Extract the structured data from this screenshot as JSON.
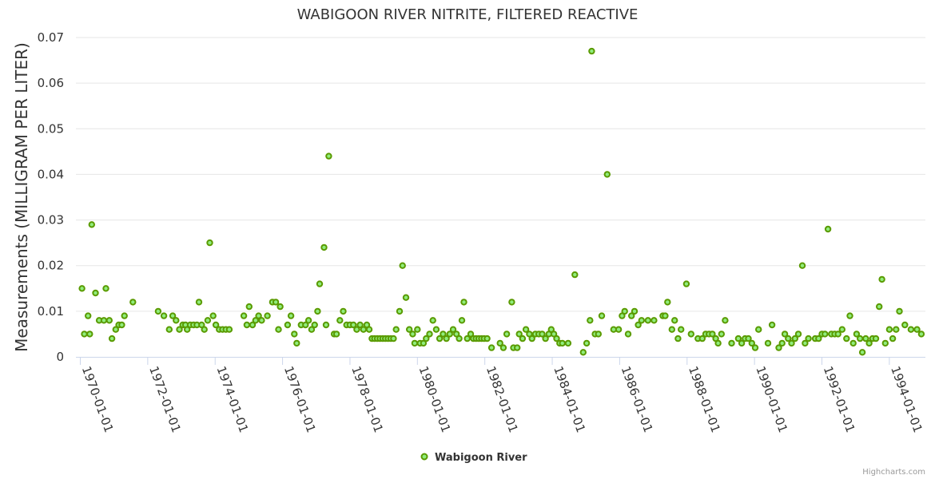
{
  "chart_data": {
    "type": "scatter",
    "title": "WABIGOON RIVER NITRITE, FILTERED REACTIVE",
    "ylabel": "Measurements (MILLIGRAM PER LITER)",
    "xlabel": "",
    "ylim": [
      0,
      0.07
    ],
    "yticks": [
      0,
      0.01,
      0.02,
      0.03,
      0.04,
      0.05,
      0.06,
      0.07
    ],
    "ytick_labels": [
      "0",
      "0.01",
      "0.02",
      "0.03",
      "0.04",
      "0.05",
      "0.06",
      "0.07"
    ],
    "xlim": [
      1969.87,
      1995.07
    ],
    "xticks": [
      1970,
      1972,
      1974,
      1976,
      1978,
      1980,
      1982,
      1984,
      1986,
      1988,
      1990,
      1992,
      1994
    ],
    "xtick_labels": [
      "1970-01-01",
      "1972-01-01",
      "1974-01-01",
      "1976-01-01",
      "1978-01-01",
      "1980-01-01",
      "1982-01-01",
      "1984-01-01",
      "1986-01-01",
      "1988-01-01",
      "1990-01-01",
      "1992-01-01",
      "1994-01-01"
    ],
    "grid": "horizontal",
    "legend": "bottom-center",
    "color": "#90ed7d",
    "series": [
      {
        "name": "Wabigoon River",
        "points": [
          [
            1970.05,
            0.015
          ],
          [
            1970.12,
            0.005
          ],
          [
            1970.23,
            0.009
          ],
          [
            1970.28,
            0.005
          ],
          [
            1970.34,
            0.029
          ],
          [
            1970.45,
            0.014
          ],
          [
            1970.56,
            0.008
          ],
          [
            1970.7,
            0.008
          ],
          [
            1970.76,
            0.015
          ],
          [
            1970.86,
            0.008
          ],
          [
            1970.94,
            0.004
          ],
          [
            1971.05,
            0.006
          ],
          [
            1971.14,
            0.007
          ],
          [
            1971.23,
            0.007
          ],
          [
            1971.31,
            0.009
          ],
          [
            1971.56,
            0.012
          ],
          [
            1972.31,
            0.01
          ],
          [
            1972.48,
            0.009
          ],
          [
            1972.64,
            0.006
          ],
          [
            1972.74,
            0.009
          ],
          [
            1972.84,
            0.008
          ],
          [
            1972.94,
            0.006
          ],
          [
            1973.04,
            0.007
          ],
          [
            1973.12,
            0.007
          ],
          [
            1973.17,
            0.006
          ],
          [
            1973.26,
            0.007
          ],
          [
            1973.36,
            0.007
          ],
          [
            1973.46,
            0.007
          ],
          [
            1973.52,
            0.012
          ],
          [
            1973.6,
            0.007
          ],
          [
            1973.68,
            0.006
          ],
          [
            1973.78,
            0.008
          ],
          [
            1973.84,
            0.025
          ],
          [
            1973.94,
            0.009
          ],
          [
            1974.02,
            0.007
          ],
          [
            1974.12,
            0.006
          ],
          [
            1974.22,
            0.006
          ],
          [
            1974.32,
            0.006
          ],
          [
            1974.42,
            0.006
          ],
          [
            1974.85,
            0.009
          ],
          [
            1974.94,
            0.007
          ],
          [
            1975.01,
            0.011
          ],
          [
            1975.11,
            0.007
          ],
          [
            1975.2,
            0.008
          ],
          [
            1975.29,
            0.009
          ],
          [
            1975.38,
            0.008
          ],
          [
            1975.55,
            0.009
          ],
          [
            1975.7,
            0.012
          ],
          [
            1975.8,
            0.012
          ],
          [
            1975.88,
            0.006
          ],
          [
            1975.93,
            0.011
          ],
          [
            1976.15,
            0.007
          ],
          [
            1976.25,
            0.009
          ],
          [
            1976.35,
            0.005
          ],
          [
            1976.42,
            0.003
          ],
          [
            1976.55,
            0.007
          ],
          [
            1976.68,
            0.007
          ],
          [
            1976.77,
            0.008
          ],
          [
            1976.86,
            0.006
          ],
          [
            1976.95,
            0.007
          ],
          [
            1977.04,
            0.01
          ],
          [
            1977.1,
            0.016
          ],
          [
            1977.23,
            0.024
          ],
          [
            1977.29,
            0.007
          ],
          [
            1977.37,
            0.044
          ],
          [
            1977.53,
            0.005
          ],
          [
            1977.6,
            0.005
          ],
          [
            1977.7,
            0.008
          ],
          [
            1977.8,
            0.01
          ],
          [
            1977.9,
            0.007
          ],
          [
            1978.0,
            0.007
          ],
          [
            1978.1,
            0.007
          ],
          [
            1978.2,
            0.006
          ],
          [
            1978.3,
            0.007
          ],
          [
            1978.4,
            0.006
          ],
          [
            1978.5,
            0.007
          ],
          [
            1978.57,
            0.006
          ],
          [
            1978.65,
            0.004
          ],
          [
            1978.73,
            0.004
          ],
          [
            1978.81,
            0.004
          ],
          [
            1978.89,
            0.004
          ],
          [
            1978.97,
            0.004
          ],
          [
            1979.05,
            0.004
          ],
          [
            1979.13,
            0.004
          ],
          [
            1979.21,
            0.004
          ],
          [
            1979.29,
            0.004
          ],
          [
            1979.37,
            0.006
          ],
          [
            1979.47,
            0.01
          ],
          [
            1979.56,
            0.02
          ],
          [
            1979.66,
            0.013
          ],
          [
            1979.76,
            0.006
          ],
          [
            1979.86,
            0.005
          ],
          [
            1979.92,
            0.003
          ],
          [
            1980.0,
            0.006
          ],
          [
            1980.08,
            0.003
          ],
          [
            1980.18,
            0.003
          ],
          [
            1980.26,
            0.004
          ],
          [
            1980.36,
            0.005
          ],
          [
            1980.46,
            0.008
          ],
          [
            1980.56,
            0.006
          ],
          [
            1980.66,
            0.004
          ],
          [
            1980.76,
            0.005
          ],
          [
            1980.86,
            0.004
          ],
          [
            1980.96,
            0.005
          ],
          [
            1981.06,
            0.006
          ],
          [
            1981.16,
            0.005
          ],
          [
            1981.24,
            0.004
          ],
          [
            1981.32,
            0.008
          ],
          [
            1981.38,
            0.012
          ],
          [
            1981.48,
            0.004
          ],
          [
            1981.58,
            0.005
          ],
          [
            1981.66,
            0.004
          ],
          [
            1981.74,
            0.004
          ],
          [
            1981.82,
            0.004
          ],
          [
            1981.9,
            0.004
          ],
          [
            1981.98,
            0.004
          ],
          [
            1982.07,
            0.004
          ],
          [
            1982.2,
            0.002
          ],
          [
            1982.45,
            0.003
          ],
          [
            1982.55,
            0.002
          ],
          [
            1982.65,
            0.005
          ],
          [
            1982.8,
            0.012
          ],
          [
            1982.85,
            0.002
          ],
          [
            1982.96,
            0.002
          ],
          [
            1983.02,
            0.005
          ],
          [
            1983.12,
            0.004
          ],
          [
            1983.22,
            0.006
          ],
          [
            1983.32,
            0.005
          ],
          [
            1983.4,
            0.004
          ],
          [
            1983.5,
            0.005
          ],
          [
            1983.6,
            0.005
          ],
          [
            1983.7,
            0.005
          ],
          [
            1983.8,
            0.004
          ],
          [
            1983.9,
            0.005
          ],
          [
            1983.97,
            0.006
          ],
          [
            1984.05,
            0.005
          ],
          [
            1984.13,
            0.004
          ],
          [
            1984.22,
            0.003
          ],
          [
            1984.3,
            0.003
          ],
          [
            1984.47,
            0.003
          ],
          [
            1984.67,
            0.018
          ],
          [
            1984.92,
            0.001
          ],
          [
            1985.02,
            0.003
          ],
          [
            1985.12,
            0.008
          ],
          [
            1985.17,
            0.067
          ],
          [
            1985.27,
            0.005
          ],
          [
            1985.37,
            0.005
          ],
          [
            1985.47,
            0.009
          ],
          [
            1985.63,
            0.04
          ],
          [
            1985.82,
            0.006
          ],
          [
            1985.97,
            0.006
          ],
          [
            1986.07,
            0.009
          ],
          [
            1986.15,
            0.01
          ],
          [
            1986.25,
            0.005
          ],
          [
            1986.35,
            0.009
          ],
          [
            1986.44,
            0.01
          ],
          [
            1986.55,
            0.007
          ],
          [
            1986.65,
            0.008
          ],
          [
            1986.84,
            0.008
          ],
          [
            1987.02,
            0.008
          ],
          [
            1987.28,
            0.009
          ],
          [
            1987.35,
            0.009
          ],
          [
            1987.42,
            0.012
          ],
          [
            1987.55,
            0.006
          ],
          [
            1987.63,
            0.008
          ],
          [
            1987.73,
            0.004
          ],
          [
            1987.82,
            0.006
          ],
          [
            1987.98,
            0.016
          ],
          [
            1988.12,
            0.005
          ],
          [
            1988.32,
            0.004
          ],
          [
            1988.45,
            0.004
          ],
          [
            1988.55,
            0.005
          ],
          [
            1988.65,
            0.005
          ],
          [
            1988.75,
            0.005
          ],
          [
            1988.85,
            0.004
          ],
          [
            1988.92,
            0.003
          ],
          [
            1989.02,
            0.005
          ],
          [
            1989.13,
            0.008
          ],
          [
            1989.32,
            0.003
          ],
          [
            1989.52,
            0.004
          ],
          [
            1989.62,
            0.003
          ],
          [
            1989.72,
            0.004
          ],
          [
            1989.82,
            0.004
          ],
          [
            1989.92,
            0.003
          ],
          [
            1990.02,
            0.002
          ],
          [
            1990.12,
            0.006
          ],
          [
            1990.4,
            0.003
          ],
          [
            1990.52,
            0.007
          ],
          [
            1990.72,
            0.002
          ],
          [
            1990.82,
            0.003
          ],
          [
            1990.9,
            0.005
          ],
          [
            1991.0,
            0.004
          ],
          [
            1991.1,
            0.003
          ],
          [
            1991.2,
            0.004
          ],
          [
            1991.3,
            0.005
          ],
          [
            1991.42,
            0.02
          ],
          [
            1991.5,
            0.003
          ],
          [
            1991.6,
            0.004
          ],
          [
            1991.8,
            0.004
          ],
          [
            1991.9,
            0.004
          ],
          [
            1992.0,
            0.005
          ],
          [
            1992.09,
            0.005
          ],
          [
            1992.18,
            0.028
          ],
          [
            1992.28,
            0.005
          ],
          [
            1992.38,
            0.005
          ],
          [
            1992.48,
            0.005
          ],
          [
            1992.6,
            0.006
          ],
          [
            1992.73,
            0.004
          ],
          [
            1992.83,
            0.009
          ],
          [
            1992.93,
            0.003
          ],
          [
            1993.03,
            0.005
          ],
          [
            1993.13,
            0.004
          ],
          [
            1993.2,
            0.001
          ],
          [
            1993.3,
            0.004
          ],
          [
            1993.4,
            0.003
          ],
          [
            1993.5,
            0.004
          ],
          [
            1993.6,
            0.004
          ],
          [
            1993.7,
            0.011
          ],
          [
            1993.78,
            0.017
          ],
          [
            1993.88,
            0.003
          ],
          [
            1994.0,
            0.006
          ],
          [
            1994.1,
            0.004
          ],
          [
            1994.2,
            0.006
          ],
          [
            1994.3,
            0.01
          ],
          [
            1994.46,
            0.007
          ],
          [
            1994.64,
            0.006
          ],
          [
            1994.82,
            0.006
          ],
          [
            1994.95,
            0.005
          ]
        ]
      }
    ],
    "credits": "Highcharts.com"
  }
}
